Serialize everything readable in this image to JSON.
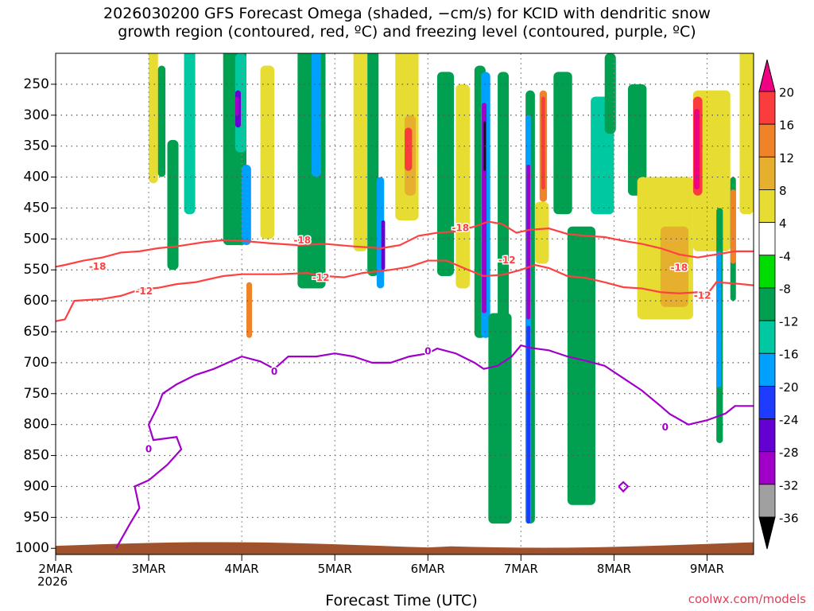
{
  "title_line1": "2026030200 GFS Forecast Omega (shaded, −cm/s) for KCID with dendritic snow",
  "title_line2": "growth region (contoured, red, ºC) and freezing level (contoured, purple, ºC)",
  "credit": "coolwx.com/models",
  "chart_data": {
    "type": "heatmap",
    "xlabel": "Forecast Time (UTC)",
    "x_year_label": "2026",
    "x_ticks": [
      "2MAR",
      "3MAR",
      "4MAR",
      "5MAR",
      "6MAR",
      "7MAR",
      "8MAR",
      "9MAR"
    ],
    "x_range_days": [
      0,
      7.5
    ],
    "y_ticks": [
      250,
      300,
      350,
      400,
      450,
      500,
      550,
      600,
      650,
      700,
      750,
      800,
      850,
      900,
      950,
      1000
    ],
    "y_range_hpa": [
      200,
      1010
    ],
    "colorbar": {
      "levels": [
        20,
        16,
        12,
        8,
        4,
        -4,
        -8,
        -12,
        -16,
        -20,
        -24,
        -28,
        -32,
        -36
      ],
      "colors": [
        "#f00082",
        "#fa3c3c",
        "#f08228",
        "#e6af2d",
        "#e6dc32",
        "#ffffff",
        "#00dc00",
        "#00a050",
        "#00c8a0",
        "#00a0ff",
        "#1e3cff",
        "#6400d2",
        "#a000c8",
        "#a0a0a0",
        "#000000"
      ]
    },
    "surface_color": "#a0522d",
    "omega_cells": [
      {
        "t": 1.0,
        "p": 160,
        "w": 0.1,
        "h": 250,
        "v": 4
      },
      {
        "t": 1.1,
        "p": 220,
        "w": 0.08,
        "h": 180,
        "v": -8
      },
      {
        "t": 1.2,
        "p": 340,
        "w": 0.12,
        "h": 210,
        "v": -8
      },
      {
        "t": 1.38,
        "p": 160,
        "w": 0.12,
        "h": 300,
        "v": -12
      },
      {
        "t": 1.8,
        "p": 160,
        "w": 0.25,
        "h": 350,
        "v": -8
      },
      {
        "t": 1.93,
        "p": 200,
        "w": 0.12,
        "h": 160,
        "v": -12
      },
      {
        "t": 1.93,
        "p": 260,
        "w": 0.06,
        "h": 60,
        "v": -24
      },
      {
        "t": 1.93,
        "p": 270,
        "w": 0.04,
        "h": 30,
        "v": -28
      },
      {
        "t": 2.0,
        "p": 380,
        "w": 0.1,
        "h": 130,
        "v": -16
      },
      {
        "t": 2.05,
        "p": 570,
        "w": 0.06,
        "h": 90,
        "v": 12
      },
      {
        "t": 2.2,
        "p": 220,
        "w": 0.15,
        "h": 280,
        "v": 4
      },
      {
        "t": 2.6,
        "p": 160,
        "w": 0.3,
        "h": 420,
        "v": -8
      },
      {
        "t": 2.75,
        "p": 160,
        "w": 0.1,
        "h": 240,
        "v": -16
      },
      {
        "t": 3.2,
        "p": 170,
        "w": 0.15,
        "h": 350,
        "v": 4
      },
      {
        "t": 3.35,
        "p": 180,
        "w": 0.12,
        "h": 380,
        "v": -8
      },
      {
        "t": 3.45,
        "p": 400,
        "w": 0.08,
        "h": 180,
        "v": -16
      },
      {
        "t": 3.5,
        "p": 470,
        "w": 0.04,
        "h": 80,
        "v": -24
      },
      {
        "t": 3.65,
        "p": 190,
        "w": 0.25,
        "h": 280,
        "v": 4
      },
      {
        "t": 3.75,
        "p": 300,
        "w": 0.12,
        "h": 130,
        "v": 8
      },
      {
        "t": 3.75,
        "p": 320,
        "w": 0.08,
        "h": 70,
        "v": 16
      },
      {
        "t": 4.1,
        "p": 230,
        "w": 0.18,
        "h": 330,
        "v": -8
      },
      {
        "t": 4.3,
        "p": 250,
        "w": 0.15,
        "h": 330,
        "v": 4
      },
      {
        "t": 4.5,
        "p": 220,
        "w": 0.12,
        "h": 440,
        "v": -8
      },
      {
        "t": 4.57,
        "p": 230,
        "w": 0.1,
        "h": 430,
        "v": -16
      },
      {
        "t": 4.58,
        "p": 280,
        "w": 0.05,
        "h": 340,
        "v": -28
      },
      {
        "t": 4.6,
        "p": 310,
        "w": 0.02,
        "h": 80,
        "v": -36
      },
      {
        "t": 4.65,
        "p": 620,
        "w": 0.25,
        "h": 340,
        "v": -8
      },
      {
        "t": 4.75,
        "p": 230,
        "w": 0.12,
        "h": 500,
        "v": -8
      },
      {
        "t": 5.05,
        "p": 260,
        "w": 0.1,
        "h": 700,
        "v": -8
      },
      {
        "t": 5.05,
        "p": 300,
        "w": 0.06,
        "h": 660,
        "v": -16
      },
      {
        "t": 5.06,
        "p": 380,
        "w": 0.04,
        "h": 250,
        "v": -28
      },
      {
        "t": 5.06,
        "p": 640,
        "w": 0.04,
        "h": 320,
        "v": -20
      },
      {
        "t": 5.2,
        "p": 260,
        "w": 0.08,
        "h": 180,
        "v": 12
      },
      {
        "t": 5.22,
        "p": 270,
        "w": 0.04,
        "h": 150,
        "v": 16
      },
      {
        "t": 5.15,
        "p": 440,
        "w": 0.15,
        "h": 100,
        "v": 4
      },
      {
        "t": 5.35,
        "p": 230,
        "w": 0.2,
        "h": 230,
        "v": -8
      },
      {
        "t": 5.5,
        "p": 480,
        "w": 0.3,
        "h": 450,
        "v": -8
      },
      {
        "t": 5.75,
        "p": 270,
        "w": 0.25,
        "h": 190,
        "v": -12
      },
      {
        "t": 5.9,
        "p": 200,
        "w": 0.12,
        "h": 130,
        "v": -8
      },
      {
        "t": 6.15,
        "p": 250,
        "w": 0.2,
        "h": 180,
        "v": -8
      },
      {
        "t": 6.25,
        "p": 400,
        "w": 0.6,
        "h": 230,
        "v": 4
      },
      {
        "t": 6.5,
        "p": 480,
        "w": 0.3,
        "h": 130,
        "v": 8
      },
      {
        "t": 6.85,
        "p": 260,
        "w": 0.4,
        "h": 260,
        "v": 4
      },
      {
        "t": 6.85,
        "p": 270,
        "w": 0.1,
        "h": 160,
        "v": 16
      },
      {
        "t": 6.86,
        "p": 290,
        "w": 0.06,
        "h": 130,
        "v": 20
      },
      {
        "t": 7.1,
        "p": 450,
        "w": 0.07,
        "h": 380,
        "v": -8
      },
      {
        "t": 7.1,
        "p": 520,
        "w": 0.05,
        "h": 220,
        "v": -16
      },
      {
        "t": 7.25,
        "p": 400,
        "w": 0.06,
        "h": 200,
        "v": -8
      },
      {
        "t": 7.25,
        "p": 420,
        "w": 0.06,
        "h": 120,
        "v": 12
      },
      {
        "t": 7.35,
        "p": 180,
        "w": 0.15,
        "h": 280,
        "v": 4
      }
    ],
    "contours": [
      {
        "label": "-18",
        "color": "#ff4040",
        "points": [
          [
            0,
            545
          ],
          [
            0.1,
            542
          ],
          [
            0.3,
            535
          ],
          [
            0.5,
            530
          ],
          [
            0.7,
            522
          ],
          [
            0.9,
            520
          ],
          [
            1.1,
            515
          ],
          [
            1.3,
            512
          ],
          [
            1.6,
            505
          ],
          [
            1.8,
            502
          ],
          [
            2.0,
            503
          ],
          [
            2.3,
            507
          ],
          [
            2.6,
            510
          ],
          [
            2.9,
            508
          ],
          [
            3.2,
            512
          ],
          [
            3.5,
            515
          ],
          [
            3.7,
            510
          ],
          [
            3.9,
            495
          ],
          [
            4.1,
            490
          ],
          [
            4.3,
            488
          ],
          [
            4.5,
            480
          ],
          [
            4.65,
            472
          ],
          [
            4.8,
            476
          ],
          [
            4.95,
            490
          ],
          [
            5.1,
            485
          ],
          [
            5.3,
            483
          ],
          [
            5.5,
            492
          ],
          [
            5.7,
            495
          ],
          [
            5.9,
            497
          ],
          [
            6.1,
            503
          ],
          [
            6.3,
            508
          ],
          [
            6.5,
            515
          ],
          [
            6.7,
            525
          ],
          [
            6.9,
            530
          ],
          [
            7.1,
            525
          ],
          [
            7.3,
            520
          ],
          [
            7.5,
            520
          ]
        ],
        "labels_at": [
          [
            0.45,
            545
          ],
          [
            2.65,
            503
          ],
          [
            4.35,
            483
          ],
          [
            6.7,
            547
          ]
        ]
      },
      {
        "label": "-12",
        "color": "#ff4040",
        "points": [
          [
            0,
            633
          ],
          [
            0.1,
            630
          ],
          [
            0.2,
            600
          ],
          [
            0.5,
            597
          ],
          [
            0.7,
            592
          ],
          [
            0.9,
            582
          ],
          [
            1.1,
            579
          ],
          [
            1.3,
            573
          ],
          [
            1.5,
            570
          ],
          [
            1.8,
            560
          ],
          [
            2.0,
            557
          ],
          [
            2.4,
            557
          ],
          [
            2.7,
            555
          ],
          [
            2.9,
            560
          ],
          [
            3.1,
            562
          ],
          [
            3.3,
            555
          ],
          [
            3.6,
            550
          ],
          [
            3.8,
            545
          ],
          [
            4.0,
            535
          ],
          [
            4.2,
            535
          ],
          [
            4.4,
            548
          ],
          [
            4.6,
            560
          ],
          [
            4.8,
            558
          ],
          [
            5.0,
            550
          ],
          [
            5.15,
            542
          ],
          [
            5.3,
            547
          ],
          [
            5.5,
            560
          ],
          [
            5.7,
            563
          ],
          [
            5.9,
            570
          ],
          [
            6.1,
            578
          ],
          [
            6.3,
            580
          ],
          [
            6.5,
            586
          ],
          [
            6.7,
            588
          ],
          [
            6.9,
            586
          ],
          [
            7.0,
            590
          ],
          [
            7.1,
            570
          ],
          [
            7.3,
            572
          ],
          [
            7.5,
            575
          ]
        ],
        "labels_at": [
          [
            0.95,
            585
          ],
          [
            2.85,
            563
          ],
          [
            4.85,
            535
          ],
          [
            6.95,
            592
          ]
        ]
      },
      {
        "label": "0",
        "color": "#a000c8",
        "points": [
          [
            0.65,
            1000
          ],
          [
            0.8,
            960
          ],
          [
            0.9,
            935
          ],
          [
            0.85,
            900
          ],
          [
            1.0,
            890
          ],
          [
            1.2,
            865
          ],
          [
            1.35,
            840
          ],
          [
            1.3,
            820
          ],
          [
            1.05,
            825
          ],
          [
            1.0,
            800
          ],
          [
            1.1,
            770
          ],
          [
            1.15,
            750
          ],
          [
            1.3,
            735
          ],
          [
            1.5,
            720
          ],
          [
            1.7,
            710
          ],
          [
            1.85,
            700
          ],
          [
            2.0,
            690
          ],
          [
            2.2,
            698
          ],
          [
            2.35,
            710
          ],
          [
            2.5,
            690
          ],
          [
            2.8,
            690
          ],
          [
            3.0,
            685
          ],
          [
            3.2,
            690
          ],
          [
            3.4,
            700
          ],
          [
            3.6,
            700
          ],
          [
            3.8,
            690
          ],
          [
            4.0,
            685
          ],
          [
            4.1,
            677
          ],
          [
            4.3,
            685
          ],
          [
            4.5,
            700
          ],
          [
            4.6,
            710
          ],
          [
            4.75,
            705
          ],
          [
            4.9,
            690
          ],
          [
            5.0,
            672
          ],
          [
            5.1,
            676
          ],
          [
            5.3,
            680
          ],
          [
            5.5,
            690
          ],
          [
            5.7,
            697
          ],
          [
            5.9,
            705
          ],
          [
            6.1,
            725
          ],
          [
            6.3,
            745
          ],
          [
            6.5,
            770
          ],
          [
            6.6,
            783
          ],
          [
            6.8,
            800
          ],
          [
            7.0,
            793
          ],
          [
            7.2,
            782
          ],
          [
            7.3,
            770
          ],
          [
            7.5,
            770
          ]
        ],
        "labels_at": [
          [
            2.35,
            715
          ],
          [
            4.0,
            682
          ],
          [
            1.0,
            840
          ],
          [
            6.55,
            805
          ]
        ]
      },
      {
        "label": "0",
        "color": "#a000c8",
        "points": [
          [
            6.05,
            900
          ],
          [
            6.1,
            893
          ],
          [
            6.15,
            900
          ],
          [
            6.1,
            908
          ],
          [
            6.05,
            900
          ]
        ],
        "labels_at": []
      }
    ]
  }
}
